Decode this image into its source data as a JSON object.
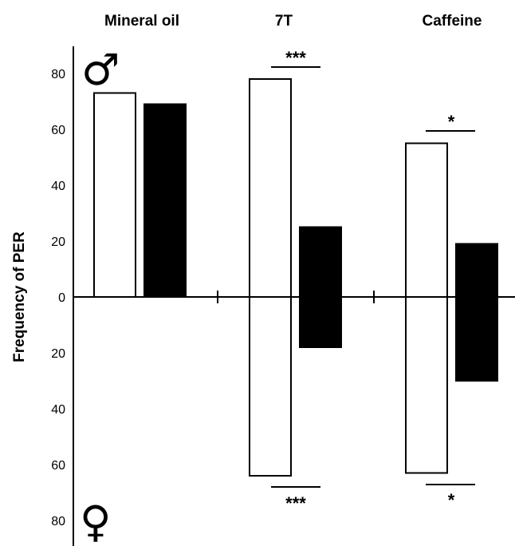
{
  "chart_data": {
    "type": "bar",
    "ylabel": "Frequency of PER",
    "yticks_male": [
      "80",
      "60",
      "40",
      "20"
    ],
    "zero_label": "0",
    "yticks_female": [
      "20",
      "40",
      "60",
      "80"
    ],
    "ylim_male": [
      0,
      80
    ],
    "ylim_female": [
      0,
      80
    ],
    "symbols": {
      "male": "♂",
      "female": "♀"
    },
    "colors": {
      "control": "#ffffff",
      "treated": "#000000",
      "stroke": "#000000"
    },
    "groups": [
      {
        "label": "Mineral oil",
        "male": {
          "control": 73,
          "treated": 69
        },
        "female": {
          "control": 0,
          "treated": 0
        },
        "sig_male": "",
        "sig_female": ""
      },
      {
        "label": "7T",
        "male": {
          "control": 78,
          "treated": 25
        },
        "female": {
          "control": 64,
          "treated": 18
        },
        "sig_male": "***",
        "sig_female": "***"
      },
      {
        "label": "Caffeine",
        "male": {
          "control": 55,
          "treated": 19
        },
        "female": {
          "control": 63,
          "treated": 30
        },
        "sig_male": "*",
        "sig_female": "*"
      }
    ]
  }
}
